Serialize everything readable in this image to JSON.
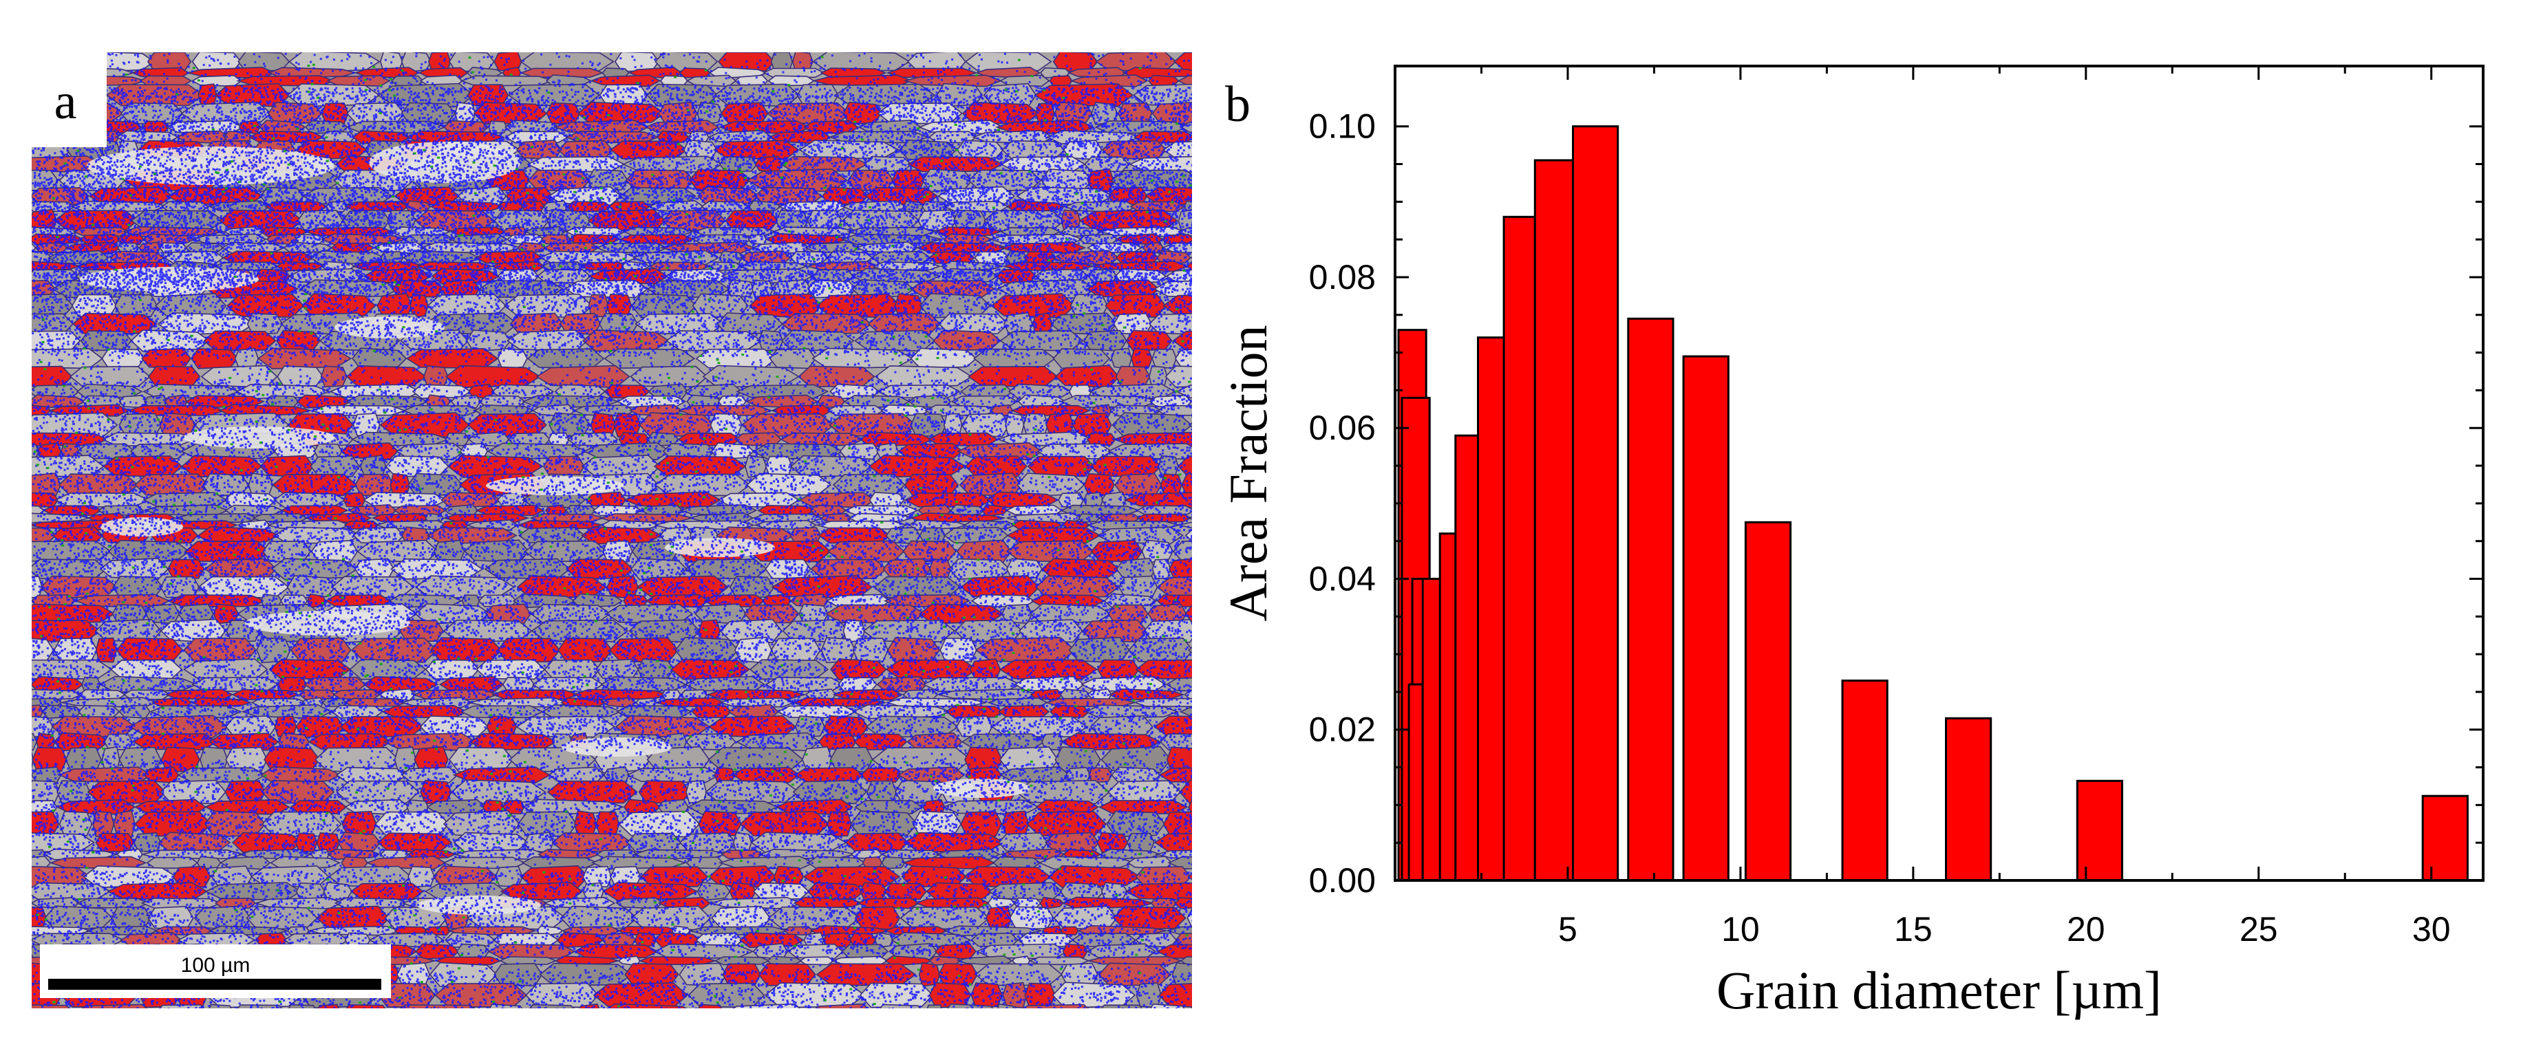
{
  "panel_a": {
    "label": "a",
    "scale_bar_label": "100 µm",
    "colors": {
      "grain_base": "#a8a4a4",
      "grain_boundary": "#3a2f7a",
      "blue_points": "#1a1aff",
      "red_regions": "#e61e1e",
      "green_points": "#1fa81f"
    }
  },
  "panel_b": {
    "label": "b"
  },
  "chart_data": {
    "type": "bar",
    "xlabel": "Grain diameter [µm]",
    "ylabel": "Area Fraction",
    "xlim": [
      0,
      31.5
    ],
    "ylim": [
      0,
      0.108
    ],
    "xticks": [
      5,
      10,
      15,
      20,
      25,
      30
    ],
    "yticks": [
      0.0,
      0.02,
      0.04,
      0.06,
      0.08,
      0.1
    ],
    "xtick_labels": [
      "5",
      "10",
      "15",
      "20",
      "25",
      "30"
    ],
    "ytick_labels": [
      "0.00",
      "0.02",
      "0.04",
      "0.06",
      "0.08",
      "0.10"
    ],
    "bar_color": "#ff0000",
    "bars": [
      {
        "center": 0.5,
        "width": 0.8,
        "value": 0.073
      },
      {
        "center": 0.6,
        "width": 0.8,
        "value": 0.064
      },
      {
        "center": 0.8,
        "width": 0.6,
        "value": 0.04
      },
      {
        "center": 0.6,
        "width": 0.4,
        "value": 0.026
      },
      {
        "center": 1.1,
        "width": 0.6,
        "value": 0.04
      },
      {
        "center": 1.6,
        "width": 0.6,
        "value": 0.046
      },
      {
        "center": 2.1,
        "width": 0.7,
        "value": 0.059
      },
      {
        "center": 2.8,
        "width": 0.8,
        "value": 0.072
      },
      {
        "center": 3.6,
        "width": 0.9,
        "value": 0.088
      },
      {
        "center": 4.6,
        "width": 1.1,
        "value": 0.0955
      },
      {
        "center": 5.8,
        "width": 1.3,
        "value": 0.1
      },
      {
        "center": 7.4,
        "width": 1.3,
        "value": 0.0745
      },
      {
        "center": 9.0,
        "width": 1.3,
        "value": 0.0695
      },
      {
        "center": 10.8,
        "width": 1.3,
        "value": 0.0475
      },
      {
        "center": 13.6,
        "width": 1.3,
        "value": 0.0265
      },
      {
        "center": 16.6,
        "width": 1.3,
        "value": 0.0215
      },
      {
        "center": 20.4,
        "width": 1.3,
        "value": 0.0132
      },
      {
        "center": 30.4,
        "width": 1.3,
        "value": 0.0112
      }
    ]
  }
}
